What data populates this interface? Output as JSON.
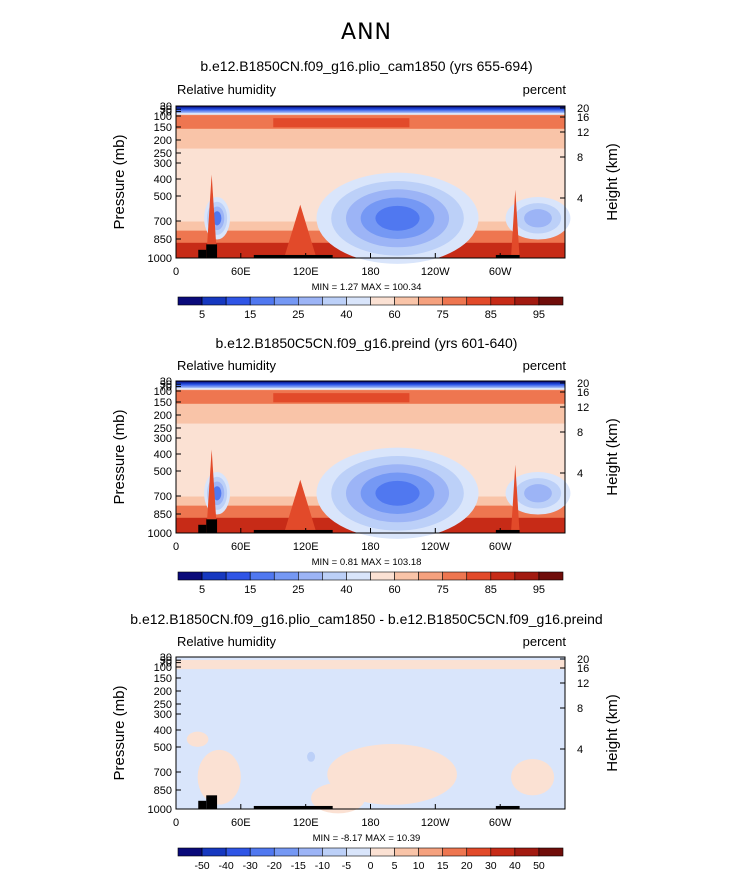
{
  "header": {
    "title": "ANN"
  },
  "chart_data": [
    {
      "type": "heatmap",
      "title": "b.e12.B1850CN.f09_g16.plio_cam1850 (yrs 655-694)",
      "variable_label": "Relative humidity",
      "units_label": "percent",
      "ylabel_left": "Pressure (mb)",
      "ylabel_right": "Height (km)",
      "xticks": [
        "0",
        "60E",
        "120E",
        "180",
        "120W",
        "60W"
      ],
      "pressure_ticks": [
        "30",
        "50",
        "70",
        "100",
        "150",
        "200",
        "250",
        "300",
        "400",
        "500",
        "700",
        "850",
        "1000"
      ],
      "height_ticks": [
        "20",
        "16",
        "12",
        "8",
        "4"
      ],
      "minmax_text": "MIN =    1.27   MAX = 100.34",
      "min": 1.27,
      "max": 100.34,
      "colorbar_labels": [
        "5",
        "15",
        "25",
        "40",
        "60",
        "75",
        "85",
        "95"
      ],
      "colorbar_levels": [
        5,
        10,
        15,
        20,
        25,
        30,
        40,
        50,
        60,
        70,
        75,
        80,
        85,
        90,
        95
      ],
      "colors": [
        "#0a0a7a",
        "#1638c0",
        "#2f55e6",
        "#5078f0",
        "#7598f4",
        "#9cb4f6",
        "#bcd0f8",
        "#d9e5fb",
        "#fbe1d3",
        "#f9c4a8",
        "#f5a17e",
        "#ee7650",
        "#e24a2a",
        "#c72b17",
        "#a21a10",
        "#700d0a"
      ],
      "land": [
        [
          28,
          38
        ],
        [
          72,
          145
        ],
        [
          296,
          318
        ]
      ]
    },
    {
      "type": "heatmap",
      "title": "b.e12.B1850C5CN.f09_g16.preind (yrs 601-640)",
      "variable_label": "Relative humidity",
      "units_label": "percent",
      "ylabel_left": "Pressure (mb)",
      "ylabel_right": "Height (km)",
      "xticks": [
        "0",
        "60E",
        "120E",
        "180",
        "120W",
        "60W"
      ],
      "pressure_ticks": [
        "30",
        "50",
        "70",
        "100",
        "150",
        "200",
        "250",
        "300",
        "400",
        "500",
        "700",
        "850",
        "1000"
      ],
      "height_ticks": [
        "20",
        "16",
        "12",
        "8",
        "4"
      ],
      "minmax_text": "MIN =    0.81   MAX = 103.18",
      "min": 0.81,
      "max": 103.18,
      "colorbar_labels": [
        "5",
        "15",
        "25",
        "40",
        "60",
        "75",
        "85",
        "95"
      ],
      "colorbar_levels": [
        5,
        10,
        15,
        20,
        25,
        30,
        40,
        50,
        60,
        70,
        75,
        80,
        85,
        90,
        95
      ],
      "colors": [
        "#0a0a7a",
        "#1638c0",
        "#2f55e6",
        "#5078f0",
        "#7598f4",
        "#9cb4f6",
        "#bcd0f8",
        "#d9e5fb",
        "#fbe1d3",
        "#f9c4a8",
        "#f5a17e",
        "#ee7650",
        "#e24a2a",
        "#c72b17",
        "#a21a10",
        "#700d0a"
      ],
      "land": [
        [
          28,
          38
        ],
        [
          72,
          145
        ],
        [
          296,
          318
        ]
      ]
    },
    {
      "type": "heatmap",
      "title": "b.e12.B1850CN.f09_g16.plio_cam1850 - b.e12.B1850C5CN.f09_g16.preind",
      "variable_label": "Relative humidity",
      "units_label": "percent",
      "ylabel_left": "Pressure (mb)",
      "ylabel_right": "Height (km)",
      "xticks": [
        "0",
        "60E",
        "120E",
        "180",
        "120W",
        "60W"
      ],
      "pressure_ticks": [
        "30",
        "50",
        "70",
        "100",
        "150",
        "200",
        "250",
        "300",
        "400",
        "500",
        "700",
        "850",
        "1000"
      ],
      "height_ticks": [
        "20",
        "16",
        "12",
        "8",
        "4"
      ],
      "minmax_text": "MIN =   -8.17   MAX =  10.39",
      "min": -8.17,
      "max": 10.39,
      "colorbar_labels": [
        "-50",
        "-40",
        "-30",
        "-20",
        "-15",
        "-10",
        "-5",
        "0",
        "5",
        "10",
        "15",
        "20",
        "30",
        "40",
        "50"
      ],
      "colorbar_levels": [
        -50,
        -40,
        -30,
        -20,
        -15,
        -10,
        -5,
        0,
        5,
        10,
        15,
        20,
        30,
        40,
        50
      ],
      "colors": [
        "#0a0a7a",
        "#1638c0",
        "#2f55e6",
        "#5078f0",
        "#7598f4",
        "#9cb4f6",
        "#bcd0f8",
        "#d9e5fb",
        "#fbe1d3",
        "#f9c4a8",
        "#f5a17e",
        "#ee7650",
        "#e24a2a",
        "#c72b17",
        "#a21a10",
        "#700d0a"
      ],
      "land": [
        [
          28,
          38
        ],
        [
          72,
          145
        ],
        [
          296,
          318
        ]
      ]
    }
  ]
}
